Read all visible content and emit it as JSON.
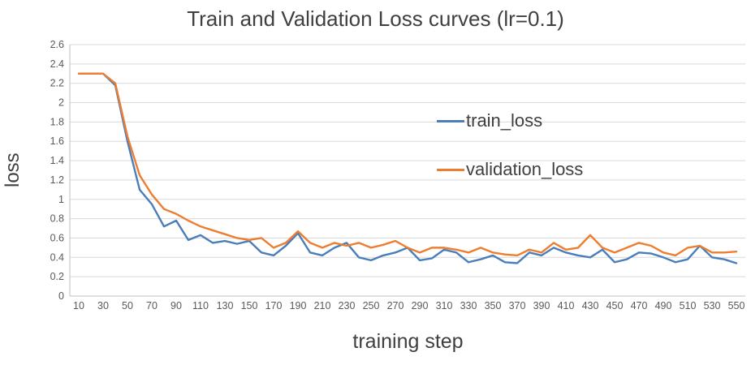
{
  "chart_data": {
    "type": "line",
    "title": "Train and Validation Loss curves  (lr=0.1)",
    "xlabel": "training step",
    "ylabel": "loss",
    "ylim": [
      0,
      2.6
    ],
    "ytick_step": 0.2,
    "grid": "horizontal",
    "legend_position": "inside-right",
    "x": [
      10,
      20,
      30,
      40,
      50,
      60,
      70,
      80,
      90,
      100,
      110,
      120,
      130,
      140,
      150,
      160,
      170,
      180,
      190,
      200,
      210,
      220,
      230,
      240,
      250,
      260,
      270,
      280,
      290,
      300,
      310,
      320,
      330,
      340,
      350,
      360,
      370,
      380,
      390,
      400,
      410,
      420,
      430,
      440,
      450,
      460,
      470,
      480,
      490,
      500,
      510,
      520,
      530,
      540,
      550
    ],
    "xtick_labels": [
      10,
      30,
      50,
      70,
      90,
      110,
      130,
      150,
      170,
      190,
      210,
      230,
      250,
      270,
      290,
      310,
      330,
      350,
      370,
      390,
      410,
      430,
      450,
      470,
      490,
      510,
      530,
      550
    ],
    "series": [
      {
        "name": "train_loss",
        "color": "#4A7EBB",
        "values": [
          2.3,
          2.3,
          2.3,
          2.18,
          1.6,
          1.1,
          0.95,
          0.72,
          0.78,
          0.58,
          0.63,
          0.55,
          0.57,
          0.54,
          0.57,
          0.45,
          0.42,
          0.52,
          0.65,
          0.45,
          0.42,
          0.5,
          0.55,
          0.4,
          0.37,
          0.42,
          0.45,
          0.5,
          0.37,
          0.39,
          0.48,
          0.45,
          0.35,
          0.38,
          0.42,
          0.35,
          0.34,
          0.45,
          0.42,
          0.5,
          0.45,
          0.42,
          0.4,
          0.48,
          0.35,
          0.38,
          0.45,
          0.44,
          0.4,
          0.35,
          0.38,
          0.52,
          0.4,
          0.38,
          0.34
        ]
      },
      {
        "name": "validation_loss",
        "color": "#ED7D31",
        "values": [
          2.3,
          2.3,
          2.3,
          2.2,
          1.65,
          1.25,
          1.05,
          0.9,
          0.85,
          0.78,
          0.72,
          0.68,
          0.64,
          0.6,
          0.58,
          0.6,
          0.5,
          0.55,
          0.67,
          0.55,
          0.5,
          0.55,
          0.52,
          0.55,
          0.5,
          0.53,
          0.57,
          0.5,
          0.45,
          0.5,
          0.5,
          0.48,
          0.45,
          0.5,
          0.45,
          0.43,
          0.42,
          0.48,
          0.45,
          0.55,
          0.48,
          0.5,
          0.63,
          0.5,
          0.45,
          0.5,
          0.55,
          0.52,
          0.45,
          0.42,
          0.5,
          0.52,
          0.45,
          0.45,
          0.46
        ]
      }
    ],
    "colors": {
      "grid": "#d9d9d9",
      "axis": "#bfbfbf",
      "tick": "#595959",
      "text": "#3f3f3f"
    }
  }
}
